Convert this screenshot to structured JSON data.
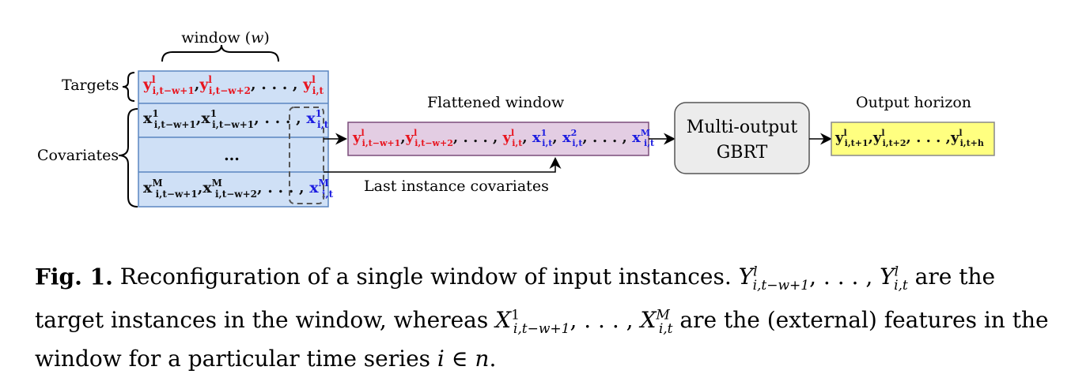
{
  "diagram": {
    "window_label": "window (w)",
    "targets_label": "Targets",
    "covariates_label": "Covariates",
    "targets_row": "y^l_{i,t−w+1}, y^l_{i,t−w+2}, . . . , y^l_{i,t}",
    "cov_row_1": "x^1_{i,t−w+1}, x^1_{i,t−w+1}, . . . , x^1_{i,t}",
    "cov_row_mid": "...",
    "cov_row_M": "x^M_{i,t−w+1}, x^M_{i,t−w+2}, . . . , x^M_{i,t}",
    "flattened_label": "Flattened window",
    "flattened_row": "y^l_{i,t−w+1}, y^l_{i,t−w+2}, . . . , y^l_{i,t}, x^1_{i,t}, x^2_{i,t}, . . . , x^M_{i,t}",
    "last_instance_label": "Last instance covariates",
    "gbrt_line1": "Multi-output",
    "gbrt_line2": "GBRT",
    "output_label": "Output horizon",
    "output_row": "y^l_{i,t+1}, y^l_{i,t+2}, . . . , y^l_{i,t+h}",
    "colors": {
      "table_fill": "#cfe0f6",
      "table_border": "#5a86c0",
      "target_red": "#e8141e",
      "covariate_blue": "#1c1ce0",
      "flatten_fill": "#e3cde3",
      "gbrt_fill": "#ececec",
      "output_fill": "#ffff80"
    }
  },
  "caption": {
    "label": "Fig. 1.",
    "text": "Reconfiguration of a single window of input instances. Y^l_{i,t−w+1}, . . . , Y^l_{i,t} are the target instances in the window, whereas X^1_{i,t−w+1}, . . . , X^M_{i,t} are the (external) features in the window for a particular time series i ∈ n."
  }
}
